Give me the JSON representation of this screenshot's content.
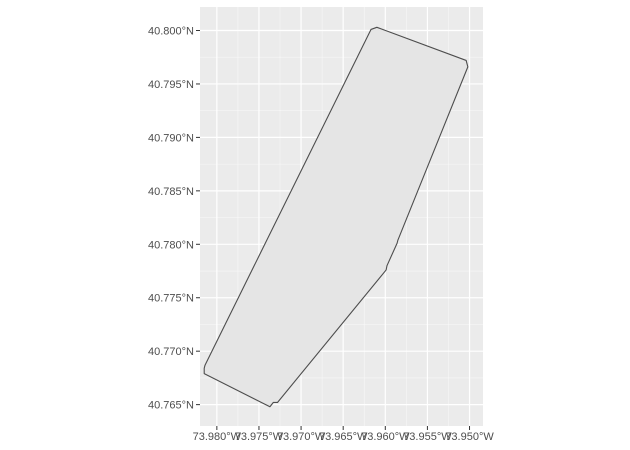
{
  "chart_data": {
    "type": "map",
    "title": "",
    "xlabel": "",
    "ylabel": "",
    "grid": true,
    "legend": "none",
    "xlim": [
      -73.982,
      -73.9484
    ],
    "ylim": [
      40.763,
      40.8022
    ],
    "x_ticks": [
      {
        "value": -73.98,
        "label": "73.980°W"
      },
      {
        "value": -73.975,
        "label": "73.975°W"
      },
      {
        "value": -73.97,
        "label": "73.970°W"
      },
      {
        "value": -73.965,
        "label": "73.965°W"
      },
      {
        "value": -73.96,
        "label": "73.960°W"
      },
      {
        "value": -73.955,
        "label": "73.955°W"
      },
      {
        "value": -73.95,
        "label": "73.950°W"
      }
    ],
    "y_ticks": [
      {
        "value": 40.765,
        "label": "40.765°N"
      },
      {
        "value": 40.77,
        "label": "40.770°N"
      },
      {
        "value": 40.775,
        "label": "40.775°N"
      },
      {
        "value": 40.78,
        "label": "40.780°N"
      },
      {
        "value": 40.785,
        "label": "40.785°N"
      },
      {
        "value": 40.79,
        "label": "40.790°N"
      },
      {
        "value": 40.795,
        "label": "40.795°N"
      },
      {
        "value": 40.8,
        "label": "40.800°N"
      }
    ],
    "polygon": [
      [
        -73.9617,
        40.8001
      ],
      [
        -73.961,
        40.8003
      ],
      [
        -73.9504,
        40.7972
      ],
      [
        -73.9502,
        40.7966
      ],
      [
        -73.9585,
        40.7804
      ],
      [
        -73.9586,
        40.7801
      ],
      [
        -73.9598,
        40.778
      ],
      [
        -73.9599,
        40.7776
      ],
      [
        -73.9728,
        40.7652
      ],
      [
        -73.9733,
        40.7652
      ],
      [
        -73.9737,
        40.7648
      ],
      [
        -73.9815,
        40.7679
      ],
      [
        -73.9815,
        40.7684
      ],
      [
        -73.9814,
        40.7687
      ]
    ],
    "colors": {
      "panel_background": "#ebebeb",
      "grid_line": "#ffffff",
      "polygon_fill": "#e5e5e5",
      "polygon_stroke": "#4d4d4d",
      "tick_text": "#4d4d4d",
      "tick_mark": "#333333"
    }
  }
}
